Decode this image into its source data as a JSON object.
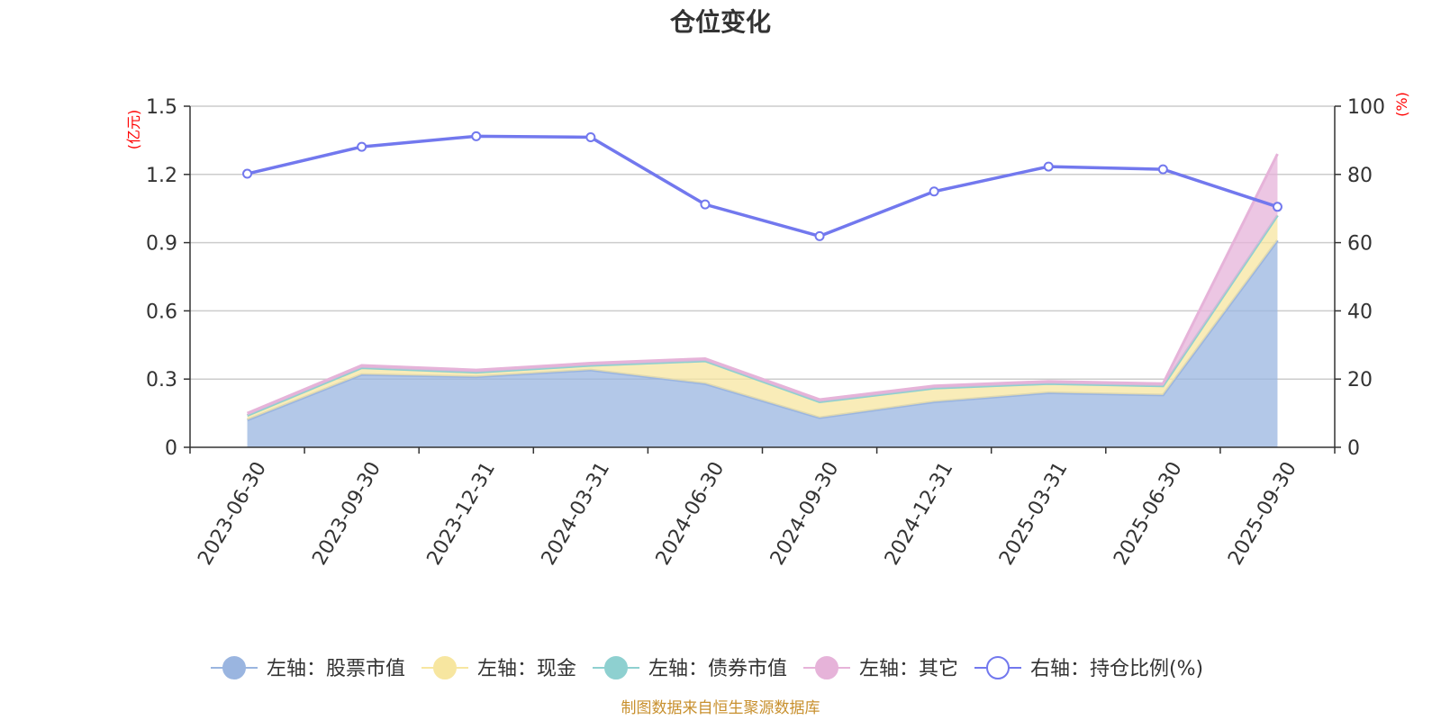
{
  "chart_data": {
    "type": "area",
    "title": "仓位变化",
    "categories": [
      "2023-06-30",
      "2023-09-30",
      "2023-12-31",
      "2024-03-31",
      "2024-06-30",
      "2024-09-30",
      "2024-12-31",
      "2025-03-31",
      "2025-06-30",
      "2025-09-30"
    ],
    "left_axis": {
      "unit": "(亿元)",
      "min": 0,
      "max": 1.5,
      "ticks": [
        "0",
        "0.3",
        "0.6",
        "0.9",
        "1.2",
        "1.5"
      ]
    },
    "right_axis": {
      "unit": "(%)",
      "min": 0,
      "max": 100,
      "ticks": [
        "0",
        "20",
        "40",
        "60",
        "80",
        "100"
      ]
    },
    "stacked_series": [
      {
        "name": "左轴：股票市值",
        "color": "#9ab5e0",
        "values": [
          0.12,
          0.32,
          0.31,
          0.34,
          0.28,
          0.13,
          0.2,
          0.24,
          0.23,
          0.91
        ]
      },
      {
        "name": "左轴：现金",
        "color": "#f7e6a0",
        "values": [
          0.02,
          0.03,
          0.02,
          0.02,
          0.1,
          0.07,
          0.06,
          0.04,
          0.04,
          0.11
        ]
      },
      {
        "name": "左轴：债券市值",
        "color": "#8ed0d0",
        "values": [
          0.0,
          0.0,
          0.0,
          0.0,
          0.0,
          0.0,
          0.0,
          0.0,
          0.0,
          0.0
        ]
      },
      {
        "name": "左轴：其它",
        "color": "#e6b3d9",
        "values": [
          0.01,
          0.01,
          0.01,
          0.01,
          0.01,
          0.01,
          0.01,
          0.01,
          0.01,
          0.27
        ]
      }
    ],
    "line_series": {
      "name": "右轴：持仓比例(%)",
      "color": "#7278ee",
      "values": [
        80.2,
        88.1,
        91.2,
        90.9,
        71.2,
        61.9,
        75.0,
        82.3,
        81.5,
        70.5
      ]
    },
    "grid": true,
    "legend_position": "bottom"
  },
  "source_note": "制图数据来自恒生聚源数据库"
}
